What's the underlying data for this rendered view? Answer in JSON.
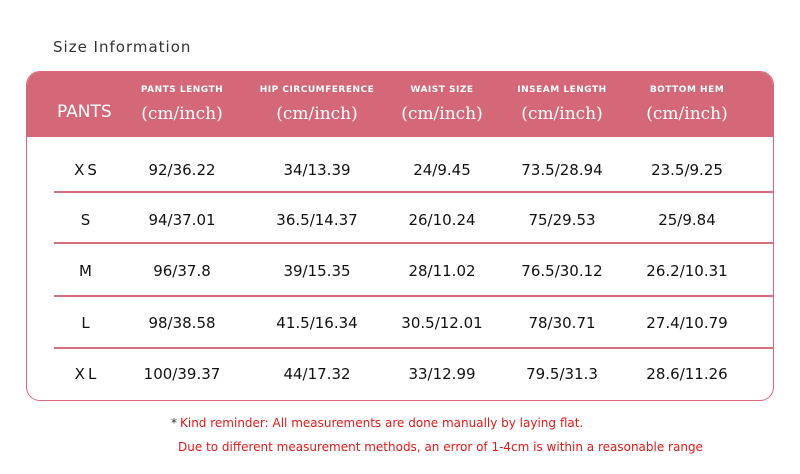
{
  "title": "Size Information",
  "table": {
    "category_label": "PANTS",
    "columns": [
      {
        "name": "PANTS LENGTH",
        "unit": "(cm/inch)"
      },
      {
        "name": "HIP CIRCUMFERENCE",
        "unit": "(cm/inch)"
      },
      {
        "name": "WAIST SIZE",
        "unit": "(cm/inch)"
      },
      {
        "name": "INSEAM LENGTH",
        "unit": "(cm/inch)"
      },
      {
        "name": "BOTTOM HEM",
        "unit": "(cm/inch)"
      }
    ],
    "rows": [
      {
        "size": "XS",
        "values": [
          "92/36.22",
          "34/13.39",
          "24/9.45",
          "73.5/28.94",
          "23.5/9.25"
        ]
      },
      {
        "size": "S",
        "values": [
          "94/37.01",
          "36.5/14.37",
          "26/10.24",
          "75/29.53",
          "25/9.84"
        ]
      },
      {
        "size": "M",
        "values": [
          "96/37.8",
          "39/15.35",
          "28/11.02",
          "76.5/30.12",
          "26.2/10.31"
        ]
      },
      {
        "size": "L",
        "values": [
          "98/38.58",
          "41.5/16.34",
          "30.5/12.01",
          "78/30.71",
          "27.4/10.79"
        ]
      },
      {
        "size": "XL",
        "values": [
          "100/39.37",
          "44/17.32",
          "33/12.99",
          "79.5/31.3",
          "28.6/11.26"
        ]
      }
    ]
  },
  "notes": {
    "star": "*",
    "line1": "Kind reminder: All measurements are done manually by laying flat.",
    "line2": "Due to different measurement methods, an error of 1-4cm is within a reasonable range"
  },
  "colors": {
    "header_bg": "#d46878",
    "border": "#d86a78",
    "note_text": "#e11a1a"
  }
}
